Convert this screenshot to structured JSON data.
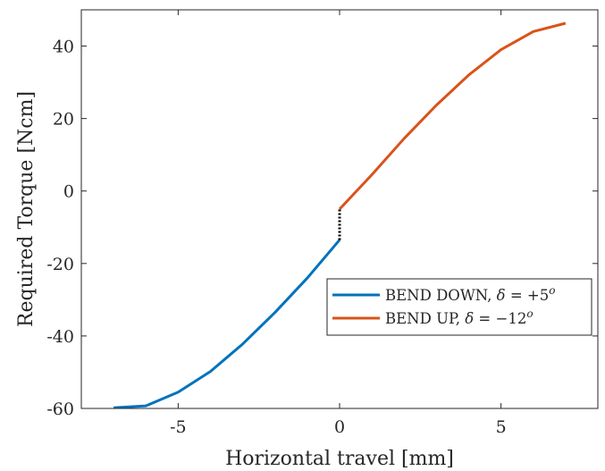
{
  "chart_data": {
    "type": "line",
    "title": "",
    "xlabel": "Horizontal travel [mm]",
    "ylabel": "Required Torque [Ncm]",
    "xlim": [
      -8,
      8
    ],
    "ylim": [
      -60,
      50
    ],
    "xticks": [
      -5,
      0,
      5
    ],
    "yticks": [
      -60,
      -40,
      -20,
      0,
      20,
      40
    ],
    "grid": false,
    "legend_position": "right",
    "series": [
      {
        "name": "BEND DOWN, δ = +5°",
        "legend_main": "BEND DOWN, ",
        "legend_var": "δ",
        "legend_eq": " = +5",
        "legend_sup": "o",
        "color": "#0072BD",
        "x": [
          -7,
          -6,
          -5,
          -4,
          -3,
          -2,
          -1,
          0
        ],
        "y": [
          -59.8,
          -59.3,
          -55.5,
          -49.8,
          -42.2,
          -33.5,
          -24,
          -13.5
        ]
      },
      {
        "name": "BEND UP, δ = −12°",
        "legend_main": "BEND UP, ",
        "legend_var": "δ",
        "legend_eq": " = −12",
        "legend_sup": "o",
        "color": "#D95319",
        "x": [
          0,
          1,
          2,
          3,
          4,
          5,
          6,
          7
        ],
        "y": [
          -5,
          4.5,
          14.5,
          23.7,
          32,
          39,
          44,
          46.3
        ]
      }
    ],
    "connector": {
      "style": "dotted",
      "color": "#000000",
      "x": [
        0,
        0
      ],
      "y": [
        -13.5,
        -5
      ]
    }
  }
}
